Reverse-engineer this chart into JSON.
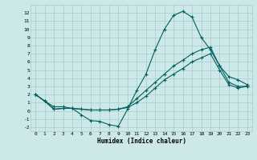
{
  "xlabel": "Humidex (Indice chaleur)",
  "bg_color": "#cce8e8",
  "line_color": "#006060",
  "grid_color": "#aacccc",
  "xlim": [
    -0.5,
    23.5
  ],
  "ylim": [
    -2.5,
    13
  ],
  "xticks": [
    0,
    1,
    2,
    3,
    4,
    5,
    6,
    7,
    8,
    9,
    10,
    11,
    12,
    13,
    14,
    15,
    16,
    17,
    18,
    19,
    20,
    21,
    22,
    23
  ],
  "yticks": [
    -2,
    -1,
    0,
    1,
    2,
    3,
    4,
    5,
    6,
    7,
    8,
    9,
    10,
    11,
    12
  ],
  "line1_x": [
    0,
    1,
    2,
    3,
    4,
    5,
    6,
    7,
    8,
    9,
    10,
    11,
    12,
    13,
    14,
    15,
    16,
    17,
    18,
    19,
    20,
    21,
    22,
    23
  ],
  "line1_y": [
    2.0,
    1.2,
    0.5,
    0.5,
    0.3,
    -0.5,
    -1.2,
    -1.3,
    -1.7,
    -1.9,
    0.2,
    2.5,
    4.5,
    7.5,
    10.0,
    11.7,
    12.2,
    11.5,
    9.0,
    7.5,
    5.5,
    4.2,
    3.8,
    3.2
  ],
  "line2_x": [
    0,
    1,
    2,
    3,
    4,
    5,
    6,
    7,
    8,
    9,
    10,
    11,
    12,
    13,
    14,
    15,
    16,
    17,
    18,
    19,
    20,
    21,
    22,
    23
  ],
  "line2_y": [
    2.0,
    1.2,
    0.2,
    0.3,
    0.3,
    0.2,
    0.1,
    0.1,
    0.1,
    0.2,
    0.5,
    1.5,
    2.5,
    3.5,
    4.5,
    5.5,
    6.2,
    7.0,
    7.5,
    7.8,
    5.5,
    3.5,
    3.0,
    3.0
  ],
  "line3_x": [
    0,
    1,
    2,
    3,
    4,
    5,
    6,
    7,
    8,
    9,
    10,
    11,
    12,
    13,
    14,
    15,
    16,
    17,
    18,
    19,
    20,
    21,
    22,
    23
  ],
  "line3_y": [
    2.0,
    1.2,
    0.2,
    0.3,
    0.3,
    0.2,
    0.1,
    0.1,
    0.1,
    0.2,
    0.4,
    1.0,
    1.8,
    2.8,
    3.8,
    4.5,
    5.2,
    6.0,
    6.5,
    7.0,
    5.0,
    3.2,
    2.8,
    3.0
  ],
  "xlabel_fontsize": 5.5,
  "tick_fontsize": 4.5
}
